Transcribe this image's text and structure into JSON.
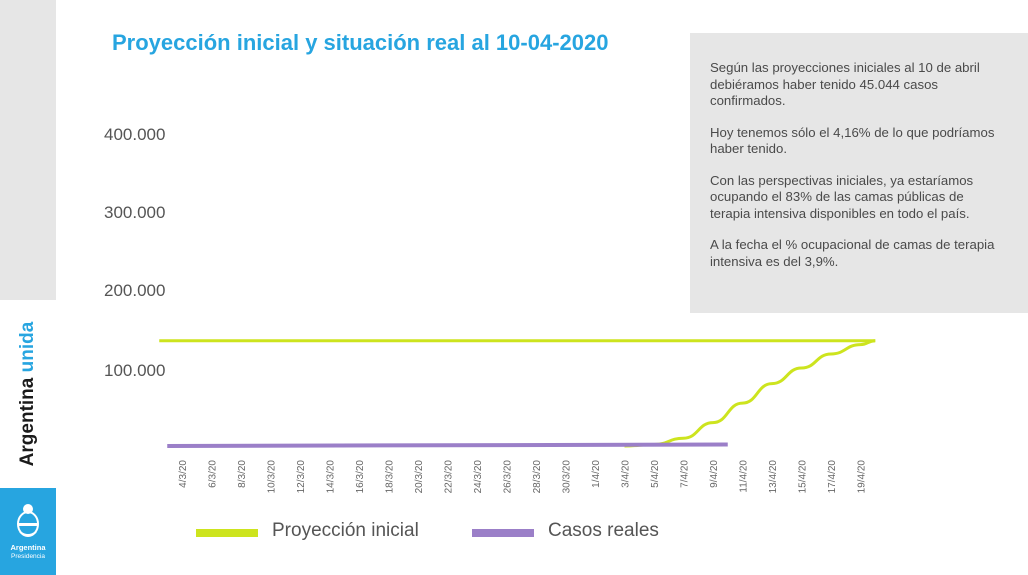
{
  "title": "Proyección inicial y situación real al 10-04-2020",
  "info": [
    "Según las proyecciones iniciales al 10 de abril debiéramos haber tenido 45.044 casos confirmados.",
    "Hoy tenemos sólo el 4,16% de lo que podríamos haber tenido.",
    "Con las perspectivas iniciales, ya estaríamos ocupando el 83% de las camas públicas de terapia intensiva disponibles en todo el país.",
    "A la fecha el % ocupacional de camas de terapia intensiva es del 3,9%."
  ],
  "branding": {
    "line1": "Argentina",
    "line1_accent": "unida",
    "presidencia_name": "Argentina",
    "presidencia_sub": "Presidencia"
  },
  "colors": {
    "accent": "#27a5e0",
    "proyeccion": "#cde41e",
    "casos": "#9b7fc8"
  },
  "chart_data": {
    "type": "line",
    "ytick_labels": [
      "400.000",
      "300.000",
      "200.000",
      "100.000"
    ],
    "yticks": [
      400000,
      300000,
      200000,
      100000
    ],
    "ylim": [
      0,
      415000
    ],
    "grid": false,
    "x_labels": [
      "4/3/20",
      "6/3/20",
      "8/3/20",
      "10/3/20",
      "12/3/20",
      "14/3/20",
      "16/3/20",
      "18/3/20",
      "20/3/20",
      "22/3/20",
      "24/3/20",
      "26/3/20",
      "28/3/20",
      "30/3/20",
      "1/4/20",
      "3/4/20",
      "5/4/20",
      "7/4/20",
      "9/4/20",
      "11/4/20",
      "13/4/20",
      "15/4/20",
      "17/4/20",
      "19/4/20"
    ],
    "legend_position": "bottom",
    "series": [
      {
        "name": "Proyección inicial",
        "color": "#cde41e",
        "points": [
          {
            "x": "3/3/20",
            "y": 135000
          },
          {
            "x": "20/4/20",
            "y": 135000
          }
        ],
        "curve": [
          {
            "x": "3/4/20",
            "y": 0
          },
          {
            "x": "5/4/20",
            "y": 2000
          },
          {
            "x": "7/4/20",
            "y": 10000
          },
          {
            "x": "9/4/20",
            "y": 30000
          },
          {
            "x": "11/4/20",
            "y": 55000
          },
          {
            "x": "13/4/20",
            "y": 80000
          },
          {
            "x": "15/4/20",
            "y": 100000
          },
          {
            "x": "17/4/20",
            "y": 118000
          },
          {
            "x": "19/4/20",
            "y": 130000
          },
          {
            "x": "20/4/20",
            "y": 135000
          }
        ]
      },
      {
        "name": "Casos reales",
        "color": "#9b7fc8",
        "points": [
          {
            "x": "3/3/20",
            "y": 0
          },
          {
            "x": "10/4/20",
            "y": 1900
          }
        ]
      }
    ]
  }
}
